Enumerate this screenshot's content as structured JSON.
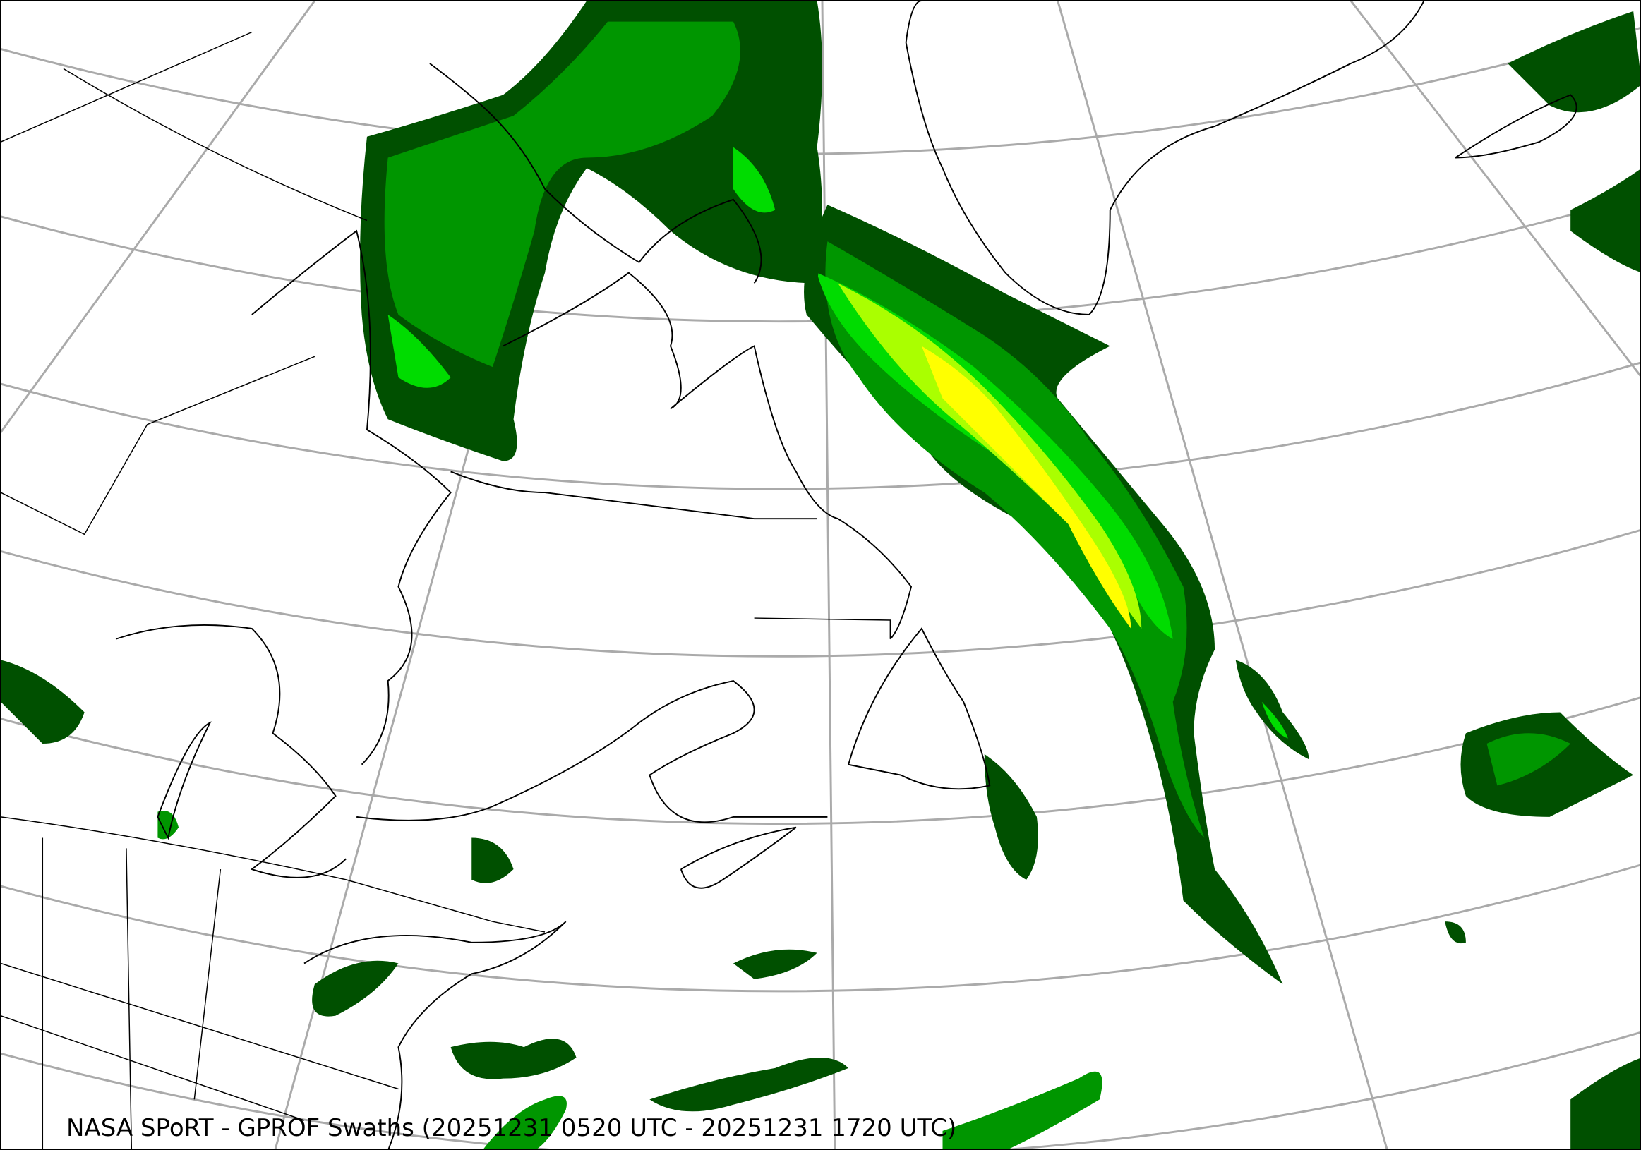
{
  "map": {
    "caption": "NASA SPoRT - GPROF Swaths (20251231 0520 UTC - 20251231 1720 UTC)",
    "projection": "conic",
    "region": "Northeastern North America / North Atlantic",
    "graticule": true,
    "colors": {
      "graticule": "#aaaaaa",
      "coastline": "#000000",
      "precip_light": "#005000",
      "precip_moderate": "#009600",
      "precip_bright": "#00dc00",
      "precip_heavy": "#aaff00",
      "precip_very_heavy": "#ffff00"
    }
  }
}
